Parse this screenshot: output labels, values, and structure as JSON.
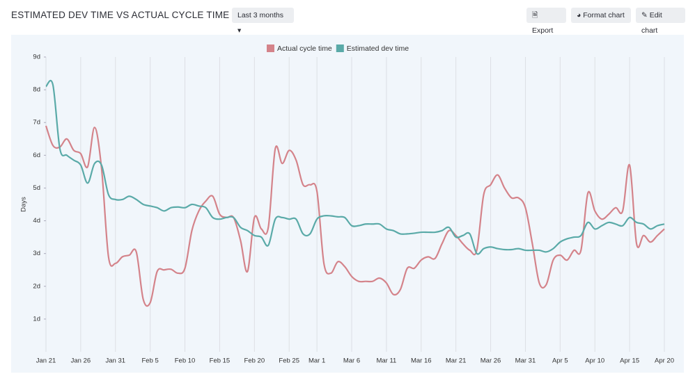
{
  "header": {
    "title": "ESTIMATED DEV TIME VS ACTUAL CYCLE TIME",
    "range": "Last 3 months",
    "buttons": [
      "Export",
      "Format chart",
      "Edit chart"
    ]
  },
  "chart_data": {
    "type": "line",
    "y_label": "Days",
    "categories": [
      "Jan 21",
      null,
      null,
      null,
      null,
      "Jan 26",
      null,
      null,
      null,
      null,
      "Jan 31",
      null,
      null,
      null,
      null,
      "Feb 5",
      null,
      null,
      null,
      null,
      "Feb 10",
      null,
      null,
      null,
      null,
      "Feb 15",
      null,
      null,
      null,
      null,
      "Feb 20",
      null,
      null,
      null,
      null,
      "Feb 25",
      null,
      null,
      null,
      "Mar 1",
      null,
      null,
      null,
      null,
      "Mar 6",
      null,
      null,
      null,
      null,
      "Mar 11",
      null,
      null,
      null,
      null,
      "Mar 16",
      null,
      null,
      null,
      null,
      "Mar 21",
      null,
      null,
      null,
      null,
      "Mar 26",
      null,
      null,
      null,
      null,
      "Mar 31",
      null,
      null,
      null,
      null,
      "Apr 5",
      null,
      null,
      null,
      null,
      "Apr 10",
      null,
      null,
      null,
      null,
      "Apr 15",
      null,
      null,
      null,
      null,
      "Apr 20"
    ],
    "series": [
      {
        "name": "Actual cycle time",
        "color": "#d4838a",
        "values": [
          6.9,
          6.3,
          6.25,
          6.5,
          6.15,
          6.05,
          5.65,
          6.85,
          5.6,
          2.9,
          2.7,
          2.9,
          2.95,
          3.05,
          1.6,
          1.5,
          2.45,
          2.5,
          2.52,
          2.4,
          2.55,
          3.7,
          4.3,
          4.6,
          4.75,
          4.2,
          4.1,
          4.1,
          3.4,
          2.45,
          4.1,
          3.75,
          3.8,
          6.2,
          5.75,
          6.15,
          5.85,
          5.1,
          5.1,
          4.9,
          2.7,
          2.4,
          2.75,
          2.6,
          2.3,
          2.15,
          2.15,
          2.15,
          2.25,
          2.1,
          1.75,
          1.9,
          2.55,
          2.55,
          2.8,
          2.9,
          2.85,
          3.3,
          3.7,
          3.55,
          3.3,
          3.1,
          3.1,
          4.8,
          5.1,
          5.4,
          5.0,
          4.7,
          4.7,
          4.4,
          3.3,
          2.1,
          2.05,
          2.8,
          2.95,
          2.8,
          3.1,
          3.1,
          4.85,
          4.3,
          4.05,
          4.2,
          4.4,
          4.3,
          5.7,
          3.3,
          3.55,
          3.35,
          3.55,
          3.75
        ]
      },
      {
        "name": "Estimated dev time",
        "color": "#5aaaa8",
        "values": [
          8.1,
          8.15,
          6.2,
          6.0,
          5.85,
          5.7,
          5.15,
          5.75,
          5.7,
          4.8,
          4.65,
          4.65,
          4.75,
          4.65,
          4.5,
          4.45,
          4.4,
          4.3,
          4.4,
          4.42,
          4.4,
          4.5,
          4.45,
          4.4,
          4.1,
          4.05,
          4.1,
          4.1,
          3.8,
          3.7,
          3.55,
          3.5,
          3.25,
          4.05,
          4.1,
          4.05,
          4.05,
          3.6,
          3.6,
          4.05,
          4.15,
          4.15,
          4.12,
          4.1,
          3.85,
          3.85,
          3.9,
          3.9,
          3.9,
          3.75,
          3.7,
          3.6,
          3.6,
          3.62,
          3.65,
          3.65,
          3.65,
          3.7,
          3.8,
          3.5,
          3.55,
          3.6,
          3.0,
          3.15,
          3.2,
          3.15,
          3.12,
          3.12,
          3.15,
          3.1,
          3.1,
          3.1,
          3.05,
          3.15,
          3.35,
          3.45,
          3.5,
          3.55,
          3.95,
          3.75,
          3.85,
          3.95,
          3.9,
          3.85,
          4.1,
          3.95,
          3.9,
          3.75,
          3.85,
          3.9
        ]
      }
    ],
    "ylim": [
      0,
      9
    ],
    "yticks": [
      {
        "value": 1,
        "label": "1d"
      },
      {
        "value": 2,
        "label": "2d"
      },
      {
        "value": 3,
        "label": "3d"
      },
      {
        "value": 4,
        "label": "4d"
      },
      {
        "value": 5,
        "label": "5d"
      },
      {
        "value": 6,
        "label": "6d"
      },
      {
        "value": 7,
        "label": "7d"
      },
      {
        "value": 8,
        "label": "8d"
      },
      {
        "value": 9,
        "label": "9d"
      }
    ],
    "grid": true
  }
}
